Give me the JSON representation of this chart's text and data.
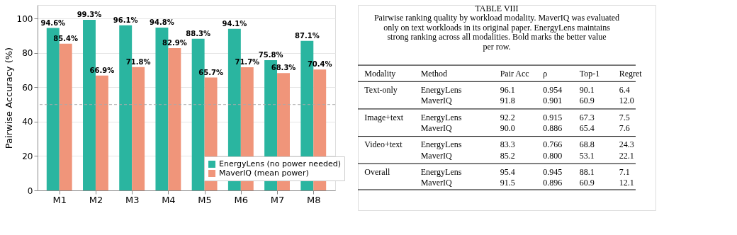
{
  "chart_data": [
    {
      "type": "bar",
      "ylabel": "Pairwise Accuracy (%)",
      "categories": [
        "M1",
        "M2",
        "M3",
        "M4",
        "M5",
        "M6",
        "M7",
        "M8"
      ],
      "series": [
        {
          "name": "EnergyLens (no power needed)",
          "color": "#2ab5a0",
          "values": [
            94.6,
            99.3,
            96.1,
            94.8,
            88.3,
            94.1,
            75.8,
            87.1
          ],
          "value_labels": [
            "94.6%",
            "99.3%",
            "96.1%",
            "94.8%",
            "88.3%",
            "94.1%",
            "75.8%",
            "87.1%"
          ]
        },
        {
          "name": "MaverIQ (mean power)",
          "color": "#f0957a",
          "values": [
            85.4,
            66.9,
            71.8,
            82.9,
            65.7,
            71.7,
            68.3,
            70.4
          ],
          "value_labels": [
            "85.4%",
            "66.9%",
            "71.8%",
            "82.9%",
            "65.7%",
            "71.7%",
            "68.3%",
            "70.4%"
          ]
        }
      ],
      "ylim": [
        0,
        108
      ],
      "yticks": [
        0,
        20,
        40,
        60,
        80,
        100
      ],
      "grid": "y",
      "legend": "bottom right",
      "ref_lines": [
        {
          "axis": "y",
          "value": 50,
          "color": "#aaaaaa",
          "line_style": "dashed"
        }
      ]
    },
    {
      "type": "other",
      "title": "TABLE VIII",
      "subtitle": "Pairwise ranking quality by workload modality. MaverIQ was evaluated only on text workloads in its original paper. EnergyLens maintains strong ranking across all modalities. Bold marks the better value per row.",
      "categories": [
        "Modality",
        "Method",
        "Pair Acc",
        "ρ",
        "Top-1",
        "Regret"
      ],
      "cell_labels": [
        [
          "Text-only",
          "EnergyLens",
          "96.1",
          "0.954",
          "90.1",
          "6.4"
        ],
        [
          null,
          "MaverIQ",
          "91.8",
          "0.901",
          "60.9",
          "12.0"
        ],
        [
          "Image+text",
          "EnergyLens",
          "92.2",
          "0.915",
          "67.3",
          "7.5"
        ],
        [
          null,
          "MaverIQ",
          "90.0",
          "0.886",
          "65.4",
          "7.6"
        ],
        [
          "Video+text",
          "EnergyLens",
          "83.3",
          "0.766",
          "68.8",
          "24.3"
        ],
        [
          null,
          "MaverIQ",
          "85.2",
          "0.800",
          "53.1",
          "22.1"
        ],
        [
          "Overall",
          "EnergyLens",
          "95.4",
          "0.945",
          "88.1",
          "7.1"
        ],
        [
          null,
          "MaverIQ",
          "91.5",
          "0.896",
          "60.9",
          "12.1"
        ]
      ]
    }
  ]
}
